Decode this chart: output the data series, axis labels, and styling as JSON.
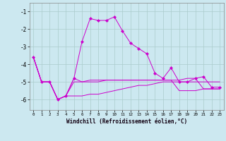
{
  "xlabel": "Windchill (Refroidissement éolien,°C)",
  "bg_color": "#cce8f0",
  "grid_color": "#aacccc",
  "line_color": "#cc00cc",
  "x": [
    0,
    1,
    2,
    3,
    4,
    5,
    6,
    7,
    8,
    9,
    10,
    11,
    12,
    13,
    14,
    15,
    16,
    17,
    18,
    19,
    20,
    21,
    22,
    23
  ],
  "line1": [
    -3.6,
    -5.0,
    -5.0,
    -6.0,
    -5.8,
    -5.0,
    -5.0,
    -5.0,
    -5.0,
    -4.9,
    -4.9,
    -4.9,
    -4.9,
    -4.9,
    -4.9,
    -4.9,
    -4.9,
    -4.9,
    -4.9,
    -4.8,
    -4.8,
    -5.4,
    -5.4,
    -5.4
  ],
  "line2": [
    -3.6,
    -5.0,
    -5.0,
    -6.0,
    -5.8,
    -4.8,
    -5.0,
    -4.9,
    -4.9,
    -4.9,
    -4.9,
    -4.9,
    -4.9,
    -4.9,
    -4.9,
    -4.9,
    -4.9,
    -4.9,
    -5.5,
    -5.5,
    -5.5,
    -5.4,
    -5.4,
    -5.4
  ],
  "line3": [
    -3.6,
    -5.0,
    -5.0,
    -6.0,
    -5.8,
    -5.8,
    -5.8,
    -5.7,
    -5.7,
    -5.6,
    -5.5,
    -5.4,
    -5.3,
    -5.2,
    -5.2,
    -5.1,
    -5.0,
    -5.0,
    -5.0,
    -5.0,
    -5.0,
    -5.0,
    -5.0,
    -5.0
  ],
  "line4": [
    -3.6,
    -5.0,
    -5.0,
    -6.0,
    -5.8,
    -4.8,
    -2.7,
    -1.4,
    -1.5,
    -1.5,
    -1.3,
    -2.1,
    -2.8,
    -3.1,
    -3.4,
    -4.5,
    -4.8,
    -4.2,
    -5.0,
    -5.0,
    -4.8,
    -4.7,
    -5.3,
    -5.3
  ],
  "ylim": [
    -6.6,
    -0.5
  ],
  "xlim": [
    -0.5,
    23.5
  ]
}
